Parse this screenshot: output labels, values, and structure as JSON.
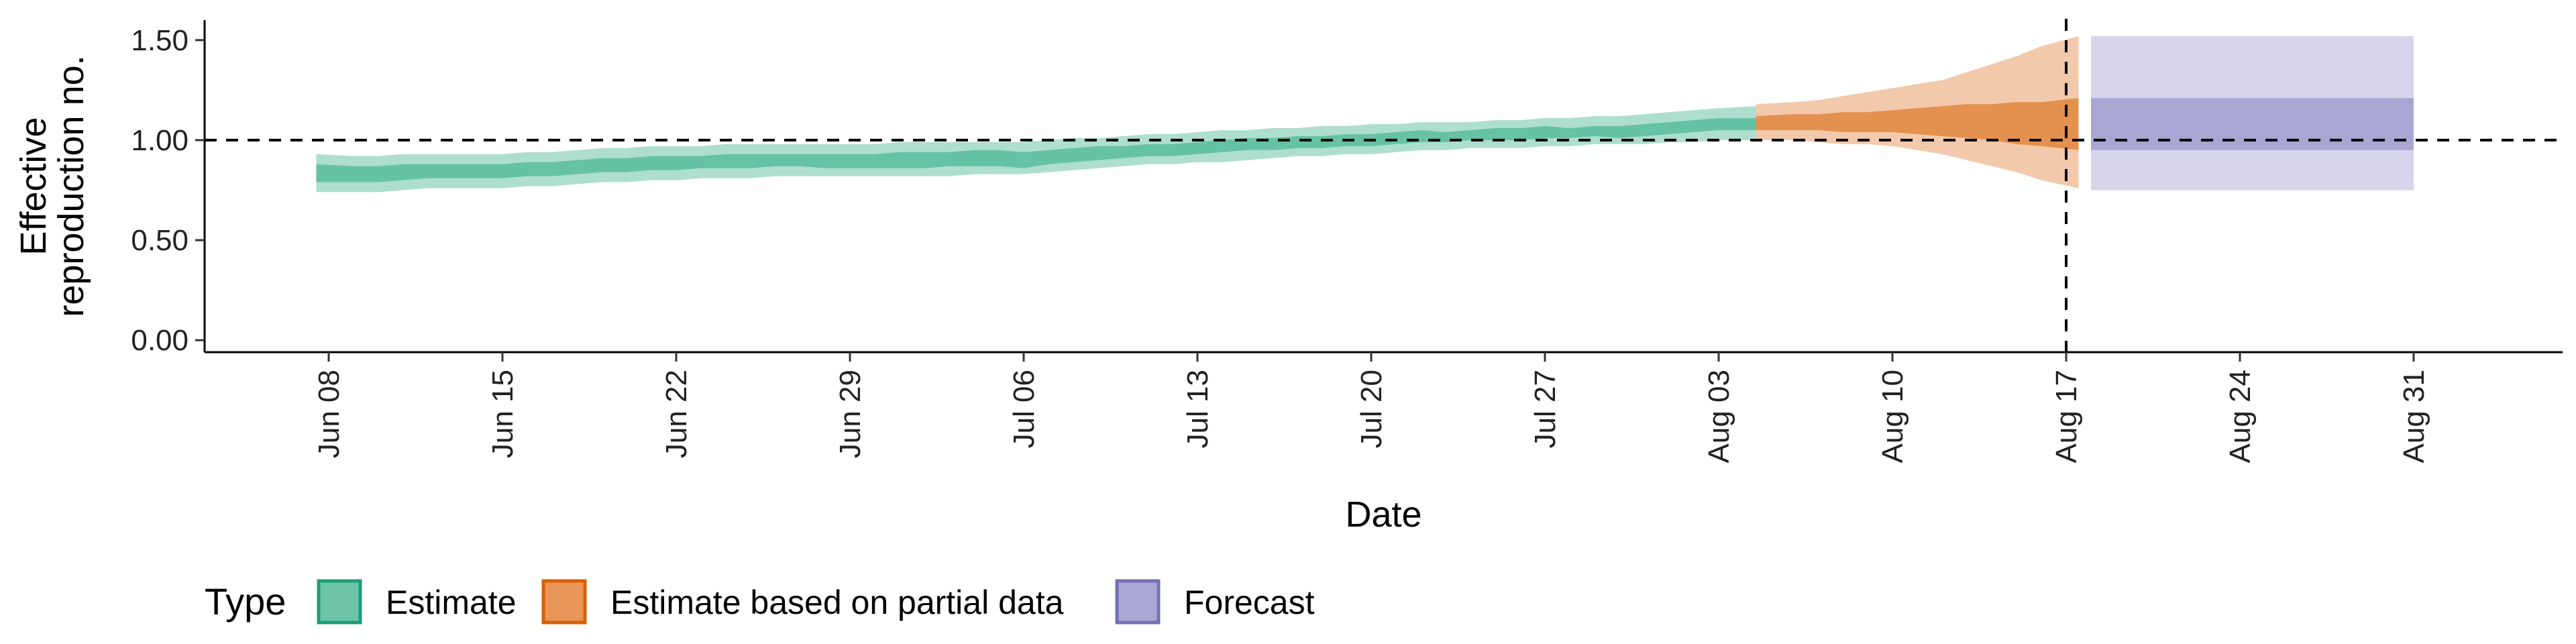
{
  "chart_data": {
    "type": "area",
    "title": "",
    "xlabel": "Date",
    "ylabel_lines": [
      "Effective",
      "reproduction no."
    ],
    "x_start": "2020-06-08",
    "x_end": "2020-08-31",
    "xlim": [
      "2020-06-03",
      "2020-09-06"
    ],
    "ylim": [
      -0.06,
      1.6
    ],
    "x_tick_labels": [
      "Jun 08",
      "Jun 15",
      "Jun 22",
      "Jun 29",
      "Jul 06",
      "Jul 13",
      "Jul 20",
      "Jul 27",
      "Aug 03",
      "Aug 10",
      "Aug 17",
      "Aug 24",
      "Aug 31"
    ],
    "x_tick_dates": [
      "2020-06-08",
      "2020-06-15",
      "2020-06-22",
      "2020-06-29",
      "2020-07-06",
      "2020-07-13",
      "2020-07-20",
      "2020-07-27",
      "2020-08-03",
      "2020-08-10",
      "2020-08-17",
      "2020-08-24",
      "2020-08-31"
    ],
    "y_ticks": [
      0.0,
      0.5,
      1.0,
      1.5
    ],
    "y_tick_labels": [
      "0.00",
      "0.50",
      "1.00",
      "1.50"
    ],
    "reference_line_y": 1.0,
    "reference_line_x": "2020-08-17",
    "grid": false,
    "legend": {
      "title": "Type",
      "position": "bottom-left",
      "entries": [
        {
          "label": "Estimate",
          "fill": "#6ec4a7",
          "stroke": "#1b9e77"
        },
        {
          "label": "Estimate based on partial data",
          "fill": "#e9965a",
          "stroke": "#d95f02"
        },
        {
          "label": "Forecast",
          "fill": "#a9a6d3",
          "stroke": "#7570b3"
        }
      ]
    },
    "series": [
      {
        "name": "Estimate",
        "color": "#1b9e77",
        "x": [
          "2020-06-08",
          "2020-06-09",
          "2020-06-10",
          "2020-06-11",
          "2020-06-12",
          "2020-06-13",
          "2020-06-14",
          "2020-06-15",
          "2020-06-16",
          "2020-06-17",
          "2020-06-18",
          "2020-06-19",
          "2020-06-20",
          "2020-06-21",
          "2020-06-22",
          "2020-06-23",
          "2020-06-24",
          "2020-06-25",
          "2020-06-26",
          "2020-06-27",
          "2020-06-28",
          "2020-06-29",
          "2020-06-30",
          "2020-07-01",
          "2020-07-02",
          "2020-07-03",
          "2020-07-04",
          "2020-07-05",
          "2020-07-06",
          "2020-07-07",
          "2020-07-08",
          "2020-07-09",
          "2020-07-10",
          "2020-07-11",
          "2020-07-12",
          "2020-07-13",
          "2020-07-14",
          "2020-07-15",
          "2020-07-16",
          "2020-07-17",
          "2020-07-18",
          "2020-07-19",
          "2020-07-20",
          "2020-07-21",
          "2020-07-22",
          "2020-07-23",
          "2020-07-24",
          "2020-07-25",
          "2020-07-26",
          "2020-07-27",
          "2020-07-28",
          "2020-07-29",
          "2020-07-30",
          "2020-07-31",
          "2020-08-01",
          "2020-08-02",
          "2020-08-03",
          "2020-08-04"
        ],
        "outer_low": [
          0.74,
          0.74,
          0.74,
          0.75,
          0.76,
          0.76,
          0.76,
          0.76,
          0.77,
          0.77,
          0.78,
          0.79,
          0.79,
          0.8,
          0.8,
          0.81,
          0.81,
          0.81,
          0.82,
          0.82,
          0.82,
          0.82,
          0.82,
          0.82,
          0.82,
          0.82,
          0.83,
          0.83,
          0.83,
          0.84,
          0.85,
          0.86,
          0.87,
          0.88,
          0.88,
          0.89,
          0.89,
          0.9,
          0.91,
          0.92,
          0.92,
          0.93,
          0.93,
          0.94,
          0.95,
          0.95,
          0.96,
          0.96,
          0.96,
          0.97,
          0.97,
          0.98,
          0.98,
          0.98,
          0.99,
          0.99,
          1.0,
          1.0
        ],
        "outer_high": [
          0.93,
          0.92,
          0.92,
          0.93,
          0.93,
          0.93,
          0.93,
          0.93,
          0.94,
          0.94,
          0.95,
          0.96,
          0.96,
          0.97,
          0.97,
          0.97,
          0.98,
          0.98,
          0.98,
          0.98,
          0.98,
          0.98,
          0.98,
          0.99,
          0.99,
          0.99,
          0.99,
          0.99,
          0.99,
          1.0,
          1.01,
          1.01,
          1.02,
          1.03,
          1.03,
          1.04,
          1.05,
          1.05,
          1.06,
          1.06,
          1.07,
          1.07,
          1.08,
          1.08,
          1.09,
          1.09,
          1.09,
          1.1,
          1.1,
          1.11,
          1.11,
          1.12,
          1.12,
          1.13,
          1.14,
          1.15,
          1.16,
          1.17
        ],
        "inner_low": [
          0.79,
          0.79,
          0.79,
          0.8,
          0.81,
          0.81,
          0.81,
          0.81,
          0.82,
          0.82,
          0.83,
          0.84,
          0.84,
          0.85,
          0.85,
          0.86,
          0.86,
          0.86,
          0.87,
          0.87,
          0.86,
          0.86,
          0.86,
          0.86,
          0.86,
          0.87,
          0.87,
          0.87,
          0.86,
          0.88,
          0.89,
          0.9,
          0.91,
          0.92,
          0.92,
          0.93,
          0.94,
          0.95,
          0.95,
          0.96,
          0.96,
          0.97,
          0.97,
          0.98,
          0.99,
          0.99,
          1.0,
          1.0,
          1.0,
          1.01,
          1.01,
          1.02,
          1.01,
          1.02,
          1.03,
          1.04,
          1.05,
          1.05
        ],
        "inner_high": [
          0.88,
          0.87,
          0.87,
          0.88,
          0.88,
          0.88,
          0.88,
          0.88,
          0.89,
          0.89,
          0.9,
          0.91,
          0.91,
          0.92,
          0.92,
          0.92,
          0.93,
          0.93,
          0.93,
          0.93,
          0.93,
          0.93,
          0.93,
          0.94,
          0.94,
          0.94,
          0.95,
          0.95,
          0.94,
          0.95,
          0.96,
          0.97,
          0.97,
          0.98,
          0.98,
          0.99,
          1.0,
          1.01,
          1.01,
          1.02,
          1.02,
          1.03,
          1.03,
          1.04,
          1.05,
          1.04,
          1.05,
          1.06,
          1.06,
          1.07,
          1.06,
          1.07,
          1.07,
          1.08,
          1.09,
          1.1,
          1.11,
          1.11
        ]
      },
      {
        "name": "Estimate based on partial data",
        "color": "#d95f02",
        "x": [
          "2020-08-05",
          "2020-08-06",
          "2020-08-07",
          "2020-08-08",
          "2020-08-09",
          "2020-08-10",
          "2020-08-11",
          "2020-08-12",
          "2020-08-13",
          "2020-08-14",
          "2020-08-15",
          "2020-08-16",
          "2020-08-17"
        ],
        "outer_low": [
          1.0,
          1.0,
          0.99,
          0.98,
          0.98,
          0.97,
          0.95,
          0.93,
          0.9,
          0.87,
          0.84,
          0.8,
          0.76
        ],
        "outer_high": [
          1.18,
          1.19,
          1.2,
          1.22,
          1.24,
          1.26,
          1.28,
          1.3,
          1.34,
          1.38,
          1.42,
          1.47,
          1.52
        ],
        "inner_low": [
          1.05,
          1.05,
          1.05,
          1.04,
          1.04,
          1.04,
          1.03,
          1.02,
          1.01,
          1.0,
          0.98,
          0.97,
          0.95
        ],
        "inner_high": [
          1.12,
          1.13,
          1.13,
          1.14,
          1.14,
          1.15,
          1.16,
          1.17,
          1.18,
          1.18,
          1.19,
          1.19,
          1.21
        ]
      },
      {
        "name": "Forecast",
        "color": "#7570b3",
        "x": [
          "2020-08-18",
          "2020-08-31"
        ],
        "outer_low": [
          0.75,
          0.75
        ],
        "outer_high": [
          1.52,
          1.52
        ],
        "inner_low": [
          0.95,
          0.95
        ],
        "inner_high": [
          1.21,
          1.21
        ]
      }
    ]
  }
}
